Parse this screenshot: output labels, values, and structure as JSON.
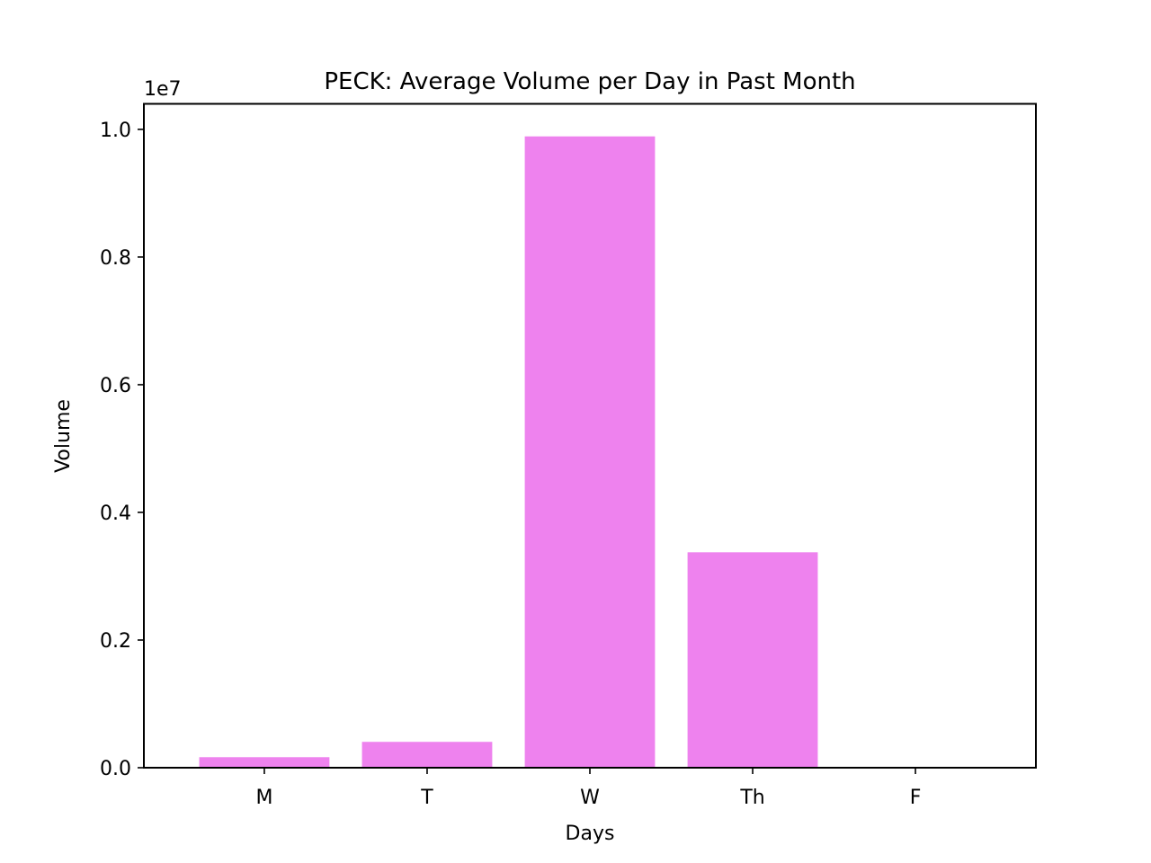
{
  "chart_data": {
    "type": "bar",
    "title": "PECK: Average Volume per Day in Past Month",
    "xlabel": "Days",
    "ylabel": "Volume",
    "categories": [
      "M",
      "T",
      "W",
      "Th",
      "F"
    ],
    "values": [
      165000,
      405000,
      9890000,
      3375000,
      0
    ],
    "ylim": [
      0,
      10400000
    ],
    "yticks": [
      0,
      2000000,
      4000000,
      6000000,
      8000000,
      10000000
    ],
    "ytick_labels": [
      "0.0",
      "0.2",
      "0.4",
      "0.6",
      "0.8",
      "1.0"
    ],
    "y_offset_label": "1e7",
    "bar_color": "#ee82ee",
    "grid": false,
    "legend": "none"
  }
}
